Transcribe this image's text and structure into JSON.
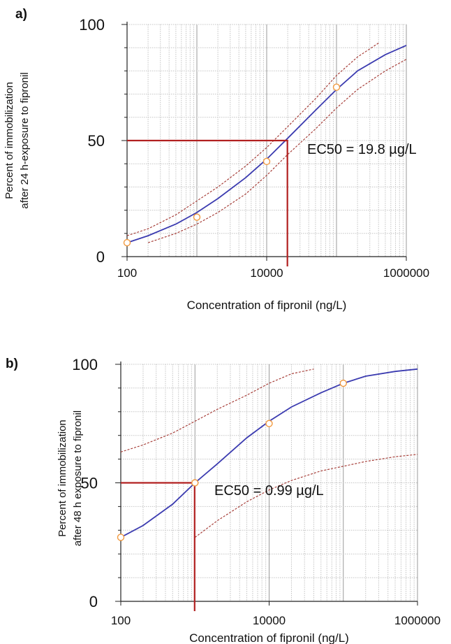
{
  "chart_data": [
    {
      "type": "line",
      "panel_label": "a)",
      "xscale": "log",
      "xlim": [
        100,
        1000000
      ],
      "ylim": [
        0,
        100
      ],
      "grid": true,
      "xticks": [
        "100",
        "10000",
        "1000000"
      ],
      "yticks": [
        "0",
        "50",
        "100"
      ],
      "xlabel": "Concentration of fipronil (ng/L)",
      "ylabel_lines": [
        "Percent of immobilization",
        "after 24 h-exposure to fipronil"
      ],
      "annotation": "EC50 = 19.8 µg/L",
      "ec50_x": 19800,
      "ec50_y": 50,
      "colors": {
        "fit": "#3b3bb0",
        "ci": "#a0302a",
        "points": "#f29a40",
        "ec50": "#b22020"
      },
      "series": [
        {
          "role": "fit",
          "x": [
            100,
            200,
            500,
            1000,
            2000,
            5000,
            10000,
            20000,
            50000,
            100000,
            200000,
            500000,
            1000000
          ],
          "y": [
            6,
            9,
            14,
            19,
            25,
            34,
            42,
            51,
            63,
            72,
            80,
            87,
            91
          ]
        },
        {
          "role": "ci-upper",
          "x": [
            100,
            200,
            500,
            1000,
            2000,
            5000,
            10000,
            20000,
            50000,
            100000,
            200000,
            400000
          ],
          "y": [
            9,
            12,
            18,
            24,
            30,
            39,
            47,
            56,
            68,
            78,
            86,
            92
          ]
        },
        {
          "role": "ci-lower",
          "x": [
            200,
            500,
            1000,
            2000,
            5000,
            10000,
            20000,
            50000,
            100000,
            200000,
            500000,
            1000000
          ],
          "y": [
            6,
            10,
            14,
            19,
            27,
            35,
            44,
            55,
            64,
            72,
            80,
            85
          ]
        },
        {
          "role": "observed",
          "x": [
            100,
            1000,
            10000,
            100000
          ],
          "y": [
            6,
            17,
            41,
            73
          ]
        }
      ]
    },
    {
      "type": "line",
      "panel_label": "b)",
      "xscale": "log",
      "xlim": [
        100,
        1000000
      ],
      "ylim": [
        0,
        100
      ],
      "grid": true,
      "xticks": [
        "100",
        "10000",
        "1000000"
      ],
      "yticks": [
        "0",
        "50",
        "100"
      ],
      "xlabel": "Concentration of fipronil (ng/L)",
      "ylabel_lines": [
        "Percent of immobilization",
        "after 48 h exposure to fipronil"
      ],
      "annotation": "EC50 = 0.99 µg/L",
      "ec50_x": 990,
      "ec50_y": 50,
      "colors": {
        "fit": "#3b3bb0",
        "ci": "#a0302a",
        "points": "#f29a40",
        "ec50": "#b22020"
      },
      "series": [
        {
          "role": "fit",
          "x": [
            100,
            200,
            500,
            1000,
            2000,
            5000,
            10000,
            20000,
            50000,
            100000,
            200000,
            500000,
            1000000
          ],
          "y": [
            27,
            32,
            41,
            50,
            58,
            69,
            76,
            82,
            88,
            92,
            95,
            97,
            98
          ]
        },
        {
          "role": "ci-upper",
          "x": [
            100,
            200,
            500,
            1000,
            2000,
            5000,
            10000,
            20000,
            40000
          ],
          "y": [
            63,
            66,
            71,
            76,
            81,
            87,
            92,
            96,
            98
          ]
        },
        {
          "role": "ci-lower",
          "x": [
            1000,
            2000,
            5000,
            10000,
            20000,
            50000,
            100000,
            200000,
            500000,
            1000000
          ],
          "y": [
            27,
            34,
            42,
            47,
            51,
            55,
            57,
            59,
            61,
            62
          ]
        },
        {
          "role": "observed",
          "x": [
            100,
            1000,
            10000,
            100000
          ],
          "y": [
            27,
            50,
            75,
            92
          ]
        }
      ]
    }
  ]
}
